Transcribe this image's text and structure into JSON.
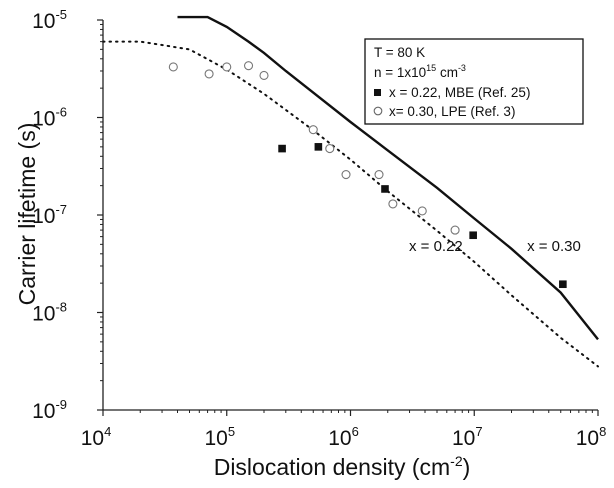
{
  "chart_data": {
    "type": "scatter",
    "xlabel": "Dislocation density (cm",
    "xlabel_exp": "-2",
    "xlabel_suffix": ")",
    "ylabel": "Carrier lifetime (s)",
    "xscale": "log",
    "yscale": "log",
    "xlim": [
      10000,
      100000000
    ],
    "ylim": [
      1e-09,
      1e-05
    ],
    "x_ticks": [
      {
        "base": "10",
        "exp": "4",
        "value": 10000
      },
      {
        "base": "10",
        "exp": "5",
        "value": 100000
      },
      {
        "base": "10",
        "exp": "6",
        "value": 1000000
      },
      {
        "base": "10",
        "exp": "7",
        "value": 10000000
      },
      {
        "base": "10",
        "exp": "8",
        "value": 100000000
      }
    ],
    "y_ticks": [
      {
        "base": "10",
        "exp": "-5",
        "value": 1e-05
      },
      {
        "base": "10",
        "exp": "-6",
        "value": 1e-06
      },
      {
        "base": "10",
        "exp": "-7",
        "value": 1e-07
      },
      {
        "base": "10",
        "exp": "-8",
        "value": 1e-08
      },
      {
        "base": "10",
        "exp": "-9",
        "value": 1e-09
      }
    ],
    "grid": false,
    "legend_position": "top-right",
    "legend": {
      "line1": "T = 80 K",
      "line2_prefix": "n = 1x10",
      "line2_exp": "15",
      "line2_suffix": " cm",
      "line2_exp2": "-3"
    },
    "series": [
      {
        "name": "x = 0.22, MBE (Ref. 25)",
        "marker": "filled-square",
        "points": [
          {
            "x": 280000,
            "y": 4.8e-07
          },
          {
            "x": 550000,
            "y": 5e-07
          },
          {
            "x": 1900000,
            "y": 1.85e-07
          },
          {
            "x": 9800000,
            "y": 6.2e-08
          },
          {
            "x": 52000000,
            "y": 1.95e-08
          }
        ]
      },
      {
        "name": "x= 0.30, LPE (Ref. 3)",
        "marker": "open-circle",
        "points": [
          {
            "x": 37000,
            "y": 3.3e-06
          },
          {
            "x": 72000,
            "y": 2.8e-06
          },
          {
            "x": 100000,
            "y": 3.3e-06
          },
          {
            "x": 150000,
            "y": 3.4e-06
          },
          {
            "x": 200000,
            "y": 2.7e-06
          },
          {
            "x": 500000,
            "y": 7.5e-07
          },
          {
            "x": 680000,
            "y": 4.8e-07
          },
          {
            "x": 920000,
            "y": 2.6e-07
          },
          {
            "x": 1700000,
            "y": 2.6e-07
          },
          {
            "x": 2200000,
            "y": 1.3e-07
          },
          {
            "x": 3800000,
            "y": 1.1e-07
          },
          {
            "x": 7000000,
            "y": 7e-08
          }
        ]
      },
      {
        "name": "x = 0.30",
        "style": "solid",
        "points": [
          {
            "x": 40000,
            "y": 1.07e-05
          },
          {
            "x": 70000,
            "y": 1.07e-05
          },
          {
            "x": 100000,
            "y": 8.5e-06
          },
          {
            "x": 150000,
            "y": 6e-06
          },
          {
            "x": 200000,
            "y": 4.6e-06
          },
          {
            "x": 300000,
            "y": 3e-06
          },
          {
            "x": 500000,
            "y": 1.8e-06
          },
          {
            "x": 1000000,
            "y": 9e-07
          },
          {
            "x": 2000000,
            "y": 4.6e-07
          },
          {
            "x": 5000000,
            "y": 1.9e-07
          },
          {
            "x": 10000000,
            "y": 9.2e-08
          },
          {
            "x": 20000000,
            "y": 4.5e-08
          },
          {
            "x": 50000000,
            "y": 1.6e-08
          },
          {
            "x": 100000000,
            "y": 5.3e-09
          }
        ]
      },
      {
        "name": "x = 0.22",
        "style": "dotted",
        "points": [
          {
            "x": 10000,
            "y": 6e-06
          },
          {
            "x": 20000,
            "y": 6e-06
          },
          {
            "x": 50000,
            "y": 5e-06
          },
          {
            "x": 100000,
            "y": 3.1e-06
          },
          {
            "x": 200000,
            "y": 1.75e-06
          },
          {
            "x": 500000,
            "y": 7.4e-07
          },
          {
            "x": 1000000,
            "y": 3.7e-07
          },
          {
            "x": 2000000,
            "y": 1.75e-07
          },
          {
            "x": 5000000,
            "y": 6.9e-08
          },
          {
            "x": 10000000,
            "y": 3.3e-08
          },
          {
            "x": 20000000,
            "y": 1.5e-08
          },
          {
            "x": 50000000,
            "y": 5.5e-09
          },
          {
            "x": 100000000,
            "y": 2.8e-09
          }
        ]
      }
    ],
    "annotations": [
      {
        "text": "x = 0.22",
        "x": 5000000,
        "y": 4.8e-08
      },
      {
        "text": "x = 0.30",
        "x": 45000000,
        "y": 4.8e-08
      }
    ]
  }
}
